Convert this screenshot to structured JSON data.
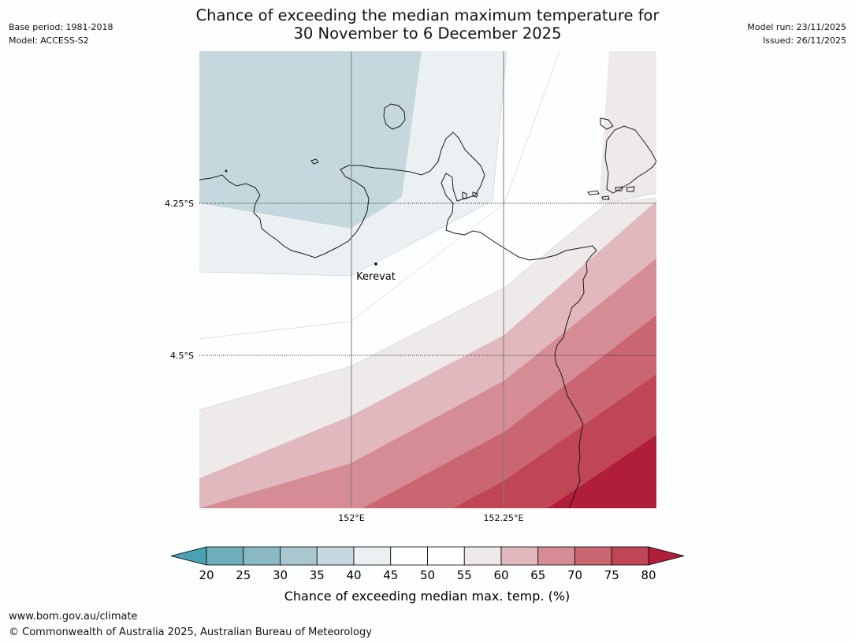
{
  "header": {
    "base_period": "Base period: 1981-2018",
    "model": "Model: ACCESS-S2",
    "title_line1": "Chance of exceeding the median maximum temperature for",
    "title_line2": "30 November to 6 December 2025",
    "model_run": "Model run: 23/11/2025",
    "issued": "Issued: 26/11/2025"
  },
  "map": {
    "place_label": "Kerevat",
    "lat_labels": [
      "4.25°S",
      "4.5°S"
    ],
    "lon_labels": [
      "152°E",
      "152.25°E"
    ]
  },
  "colorbar": {
    "label": "Chance of exceeding median max. temp. (%)",
    "ticks": [
      "20",
      "25",
      "30",
      "35",
      "40",
      "45",
      "50",
      "55",
      "60",
      "65",
      "70",
      "75",
      "80"
    ],
    "colors": [
      "#4aa1b3",
      "#6eaebb",
      "#8ab9c4",
      "#a8c7ce",
      "#c6d9de",
      "#ebf0f2",
      "#ffffff",
      "#ffffff",
      "#edeae9",
      "#e0b8bd",
      "#d68c95",
      "#ca6671",
      "#c04656",
      "#b01e3a"
    ]
  },
  "footer": {
    "url": "www.bom.gov.au/climate",
    "copyright": "© Commonwealth of Australia 2025, Australian Bureau of Meteorology"
  }
}
